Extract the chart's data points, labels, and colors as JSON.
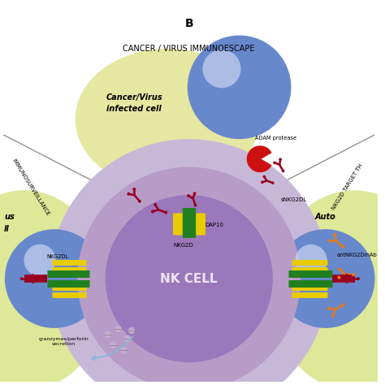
{
  "title": "B",
  "top_label": "CANCER / VIRUS IMMUNOESCAPE",
  "left_label": "IMMUNOSURVEILLANCE",
  "right_label": "NKG2D TARGET TH",
  "nk_cell_label": "NK CELL",
  "bg_color": "#ffffff",
  "nk_outer_color": "#c8b8d8",
  "nk_inner_color": "#b89cc8",
  "nk_nucleus_color": "#9b78bb",
  "cancer_cell_bg": "#e5e8a0",
  "cancer_cell_color": "#6888cc",
  "left_cell_bg": "#dde898",
  "left_cell_color": "#6888cc",
  "right_cell_bg": "#dde898",
  "right_cell_color": "#6888cc",
  "yellow_receptor": "#e8cc00",
  "green_receptor": "#208020",
  "dark_red_ligand": "#990020",
  "orange_antibody": "#e07820",
  "adam_protease_color": "#cc1010"
}
